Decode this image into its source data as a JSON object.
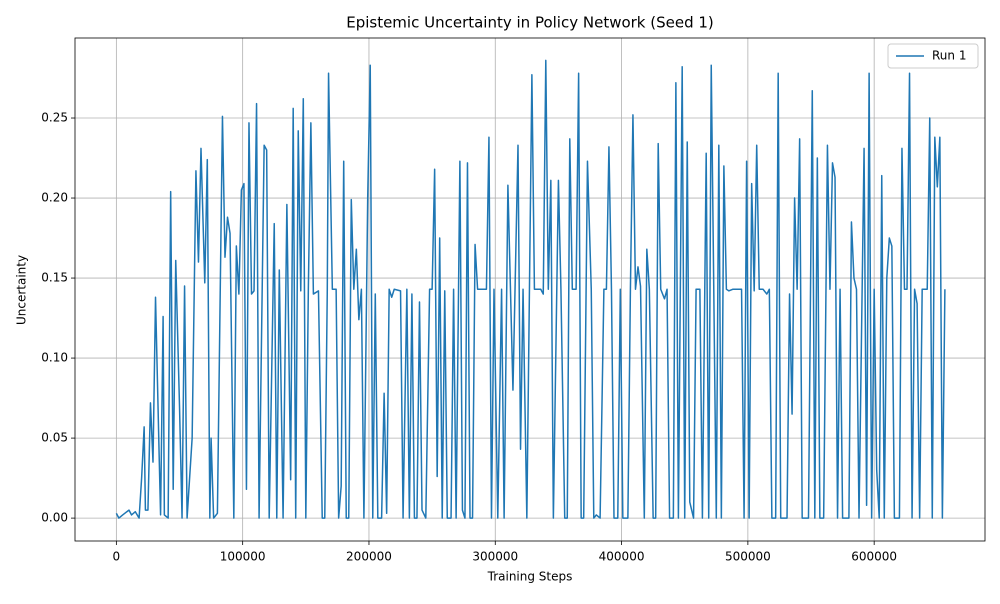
{
  "chart_data": {
    "type": "line",
    "title": "Epistemic Uncertainty in Policy Network (Seed 1)",
    "xlabel": "Training Steps",
    "ylabel": "Uncertainty",
    "x": [
      0,
      2000,
      5000,
      10000,
      12000,
      15000,
      18000,
      20000,
      22000,
      23000,
      25000,
      27000,
      29000,
      31000,
      34000,
      35000,
      37000,
      38000,
      41000,
      43000,
      45000,
      47000,
      50000,
      52000,
      54000,
      56000,
      60000,
      63000,
      65000,
      67000,
      70000,
      72000,
      74000,
      75000,
      77000,
      80000,
      84000,
      86000,
      88000,
      90000,
      93000,
      95000,
      97000,
      99000,
      101000,
      103000,
      105000,
      107000,
      109000,
      111000,
      113000,
      117000,
      119000,
      121000,
      125000,
      127000,
      129000,
      132000,
      135000,
      138000,
      140000,
      142000,
      144000,
      146000,
      148000,
      150000,
      152000,
      154000,
      156000,
      160000,
      163000,
      165000,
      167000,
      168000,
      171000,
      174000,
      176000,
      178000,
      180000,
      182000,
      184000,
      186000,
      188000,
      190000,
      192000,
      194000,
      196000,
      199000,
      201000,
      203000,
      205000,
      207000,
      210000,
      212000,
      214000,
      216000,
      218000,
      220000,
      225000,
      227000,
      230000,
      232000,
      234000,
      236000,
      238000,
      240000,
      242000,
      245000,
      248000,
      250000,
      252000,
      254000,
      256000,
      258000,
      260000,
      262000,
      265000,
      267000,
      269000,
      272000,
      274000,
      276000,
      278000,
      280000,
      282000,
      284000,
      286000,
      290000,
      293000,
      295000,
      297000,
      299000,
      302000,
      305000,
      307000,
      310000,
      314000,
      318000,
      320000,
      322000,
      325000,
      329000,
      331000,
      336000,
      338000,
      340000,
      342000,
      344000,
      346000,
      350000,
      352000,
      355000,
      357000,
      359000,
      361000,
      364000,
      366000,
      368000,
      370000,
      373000,
      376000,
      378000,
      380000,
      383000,
      386000,
      388000,
      390000,
      392000,
      394000,
      397000,
      399000,
      401000,
      405000,
      407000,
      409000,
      411000,
      413000,
      415000,
      418000,
      420000,
      422000,
      425000,
      427000,
      429000,
      431000,
      434000,
      436000,
      438000,
      441000,
      443000,
      445000,
      448000,
      450000,
      452000,
      454000,
      457000,
      459000,
      462000,
      464000,
      467000,
      469000,
      471000,
      473000,
      475000,
      477000,
      479000,
      481000,
      483000,
      485000,
      488000,
      495000,
      497000,
      499000,
      501000,
      503000,
      505000,
      507000,
      509000,
      512000,
      515000,
      517000,
      519000,
      522000,
      524000,
      526000,
      531000,
      533000,
      535000,
      537000,
      539000,
      541000,
      543000,
      548000,
      551000,
      553000,
      555000,
      557000,
      560000,
      563000,
      565000,
      567000,
      569000,
      571000,
      573000,
      575000,
      580000,
      582000,
      584000,
      586000,
      588000,
      592000,
      594000,
      596000,
      598000,
      600000,
      602000,
      604000,
      606000,
      608000,
      610000,
      612000,
      614000,
      616000,
      620000,
      622000,
      624000,
      626000,
      628000,
      630000,
      632000,
      634000,
      636000,
      638000,
      640000,
      642000,
      644000,
      646000,
      648000,
      650000,
      652000,
      654000,
      656000
    ],
    "series": [
      {
        "name": "Run 1",
        "color": "#1f77b4",
        "values": [
          0.003,
          0.0,
          0.002,
          0.005,
          0.002,
          0.004,
          0.0,
          0.025,
          0.057,
          0.005,
          0.005,
          0.072,
          0.035,
          0.138,
          0.035,
          0.002,
          0.126,
          0.002,
          0.0,
          0.204,
          0.018,
          0.161,
          0.07,
          0.0,
          0.145,
          0.0,
          0.05,
          0.217,
          0.16,
          0.231,
          0.147,
          0.224,
          0.0,
          0.05,
          0.0,
          0.003,
          0.251,
          0.163,
          0.188,
          0.178,
          0.0,
          0.17,
          0.14,
          0.205,
          0.209,
          0.018,
          0.247,
          0.14,
          0.142,
          0.259,
          0.0,
          0.233,
          0.23,
          0.0,
          0.184,
          0.0,
          0.155,
          0.0,
          0.196,
          0.024,
          0.256,
          0.0,
          0.242,
          0.142,
          0.262,
          0.0,
          0.143,
          0.247,
          0.14,
          0.142,
          0.0,
          0.0,
          0.143,
          0.278,
          0.143,
          0.143,
          0.0,
          0.02,
          0.223,
          0.0,
          0.0,
          0.199,
          0.143,
          0.168,
          0.124,
          0.143,
          0.0,
          0.2,
          0.283,
          0.0,
          0.14,
          0.0,
          0.0,
          0.078,
          0.003,
          0.143,
          0.138,
          0.143,
          0.142,
          0.0,
          0.143,
          0.0,
          0.14,
          0.0,
          0.0,
          0.135,
          0.005,
          0.0,
          0.143,
          0.143,
          0.218,
          0.026,
          0.175,
          0.0,
          0.142,
          0.0,
          0.0,
          0.143,
          0.0,
          0.223,
          0.005,
          0.0,
          0.222,
          0.0,
          0.0,
          0.171,
          0.143,
          0.143,
          0.143,
          0.238,
          0.0,
          0.143,
          0.0,
          0.143,
          0.0,
          0.208,
          0.08,
          0.233,
          0.043,
          0.143,
          0.0,
          0.277,
          0.143,
          0.143,
          0.14,
          0.286,
          0.143,
          0.211,
          0.0,
          0.211,
          0.143,
          0.0,
          0.0,
          0.237,
          0.143,
          0.143,
          0.278,
          0.0,
          0.0,
          0.223,
          0.143,
          0.0,
          0.002,
          0.0,
          0.143,
          0.143,
          0.232,
          0.143,
          0.0,
          0.0,
          0.143,
          0.0,
          0.0,
          0.143,
          0.252,
          0.143,
          0.157,
          0.145,
          0.0,
          0.168,
          0.143,
          0.0,
          0.0,
          0.234,
          0.143,
          0.137,
          0.143,
          0.0,
          0.0,
          0.272,
          0.0,
          0.282,
          0.0,
          0.235,
          0.01,
          0.0,
          0.143,
          0.143,
          0.0,
          0.228,
          0.0,
          0.283,
          0.143,
          0.0,
          0.233,
          0.0,
          0.22,
          0.143,
          0.142,
          0.143,
          0.143,
          0.0,
          0.223,
          0.0,
          0.209,
          0.142,
          0.233,
          0.143,
          0.143,
          0.14,
          0.143,
          0.0,
          0.0,
          0.278,
          0.0,
          0.0,
          0.14,
          0.065,
          0.2,
          0.143,
          0.237,
          0.0,
          0.0,
          0.267,
          0.0,
          0.225,
          0.0,
          0.0,
          0.233,
          0.143,
          0.222,
          0.213,
          0.0,
          0.143,
          0.0,
          0.0,
          0.185,
          0.15,
          0.143,
          0.0,
          0.231,
          0.008,
          0.278,
          0.0,
          0.143,
          0.03,
          0.0,
          0.214,
          0.0,
          0.15,
          0.175,
          0.17,
          0.0,
          0.0,
          0.231,
          0.143,
          0.143,
          0.278,
          0.0,
          0.143,
          0.134,
          0.0,
          0.143,
          0.143,
          0.143,
          0.25,
          0.0,
          0.238,
          0.207,
          0.238,
          0.0,
          0.143
        ]
      }
    ],
    "xlim": [
      -32750,
      687750
    ],
    "ylim": [
      -0.0143,
      0.3
    ],
    "xticks": [
      0,
      100000,
      200000,
      300000,
      400000,
      500000,
      600000
    ],
    "yticks": [
      {
        "value": 0,
        "label": "0.00"
      },
      {
        "value": 0.05,
        "label": "0.05"
      },
      {
        "value": 0.1,
        "label": "0.10"
      },
      {
        "value": 0.15,
        "label": "0.15"
      },
      {
        "value": 0.2,
        "label": "0.20"
      },
      {
        "value": 0.25,
        "label": "0.25"
      }
    ],
    "grid": true,
    "legend": "upper right"
  }
}
